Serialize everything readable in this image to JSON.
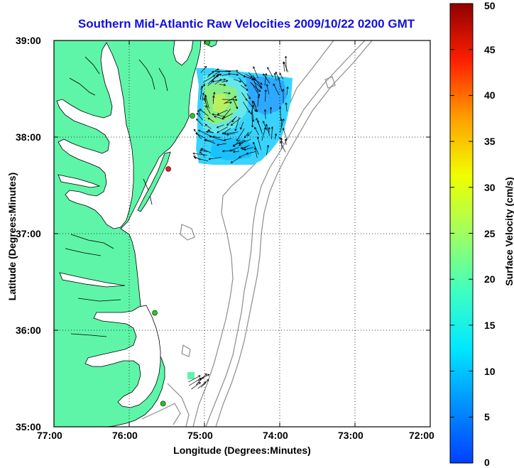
{
  "title": "Southern Mid-Atlantic Raw Velocities 2009/10/22 0200 GMT",
  "xlabel": "Longitude (Degrees:Minutes)",
  "ylabel": "Latitude (Degrees:Minutes)",
  "colorbar": {
    "label": "Surface Velocity (cm/s)",
    "range": [
      0,
      50
    ],
    "ticks": [
      "0",
      "5",
      "10",
      "15",
      "20",
      "25",
      "30",
      "35",
      "40",
      "45",
      "50"
    ],
    "colormap": "jet"
  },
  "map": {
    "lon_range": [
      -77,
      -72
    ],
    "lat_range": [
      35,
      39
    ],
    "x_ticks": [
      "77:00",
      "76:00",
      "75:00",
      "74:00",
      "73:00",
      "72:00"
    ],
    "y_ticks": [
      "39:00",
      "38:00",
      "37:00",
      "36:00",
      "35:00"
    ],
    "grid": "dotted",
    "land_color": "#5ef5a8",
    "isobath_color": "#8c8c8c"
  },
  "stations": [
    {
      "color": "#22cc22",
      "lon": -74.96,
      "lat": 38.98
    },
    {
      "color": "#22cc22",
      "lon": -75.16,
      "lat": 38.22
    },
    {
      "color": "#dd2020",
      "lon": -75.48,
      "lat": 37.67
    },
    {
      "color": "#22cc22",
      "lon": -75.66,
      "lat": 36.18
    },
    {
      "color": "#22cc22",
      "lon": -75.55,
      "lat": 35.24
    }
  ]
}
